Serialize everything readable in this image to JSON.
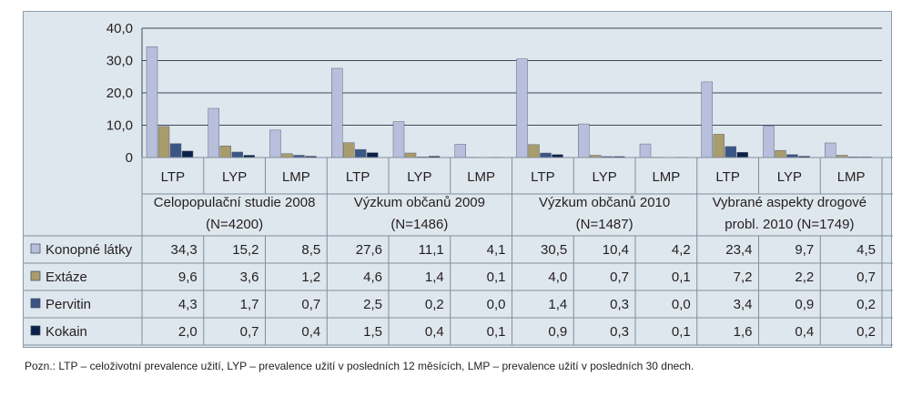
{
  "chart_data": {
    "type": "bar",
    "ylim": [
      0,
      40
    ],
    "yticks": [
      "40,0",
      "30,0",
      "20,0",
      "10,0",
      "0"
    ],
    "groups": [
      {
        "line1": "Celopopulační studie 2008",
        "line2": "(N=4200)"
      },
      {
        "line1": "Výzkum občanů 2009",
        "line2": "(N=1486)"
      },
      {
        "line1": "Výzkum občanů 2010",
        "line2": "(N=1487)"
      },
      {
        "line1": "Vybrané aspekty drogové",
        "line2": "probl. 2010 (N=1749)"
      }
    ],
    "subcategories": [
      "LTP",
      "LYP",
      "LMP",
      "LTP",
      "LYP",
      "LMP",
      "LTP",
      "LYP",
      "LMP",
      "LTP",
      "LYP",
      "LMP"
    ],
    "series": [
      {
        "name": "Konopné látky",
        "color": "#b8bfdc",
        "values": [
          34.3,
          15.2,
          8.5,
          27.6,
          11.1,
          4.1,
          30.5,
          10.4,
          4.2,
          23.4,
          9.7,
          4.5
        ],
        "labels": [
          "34,3",
          "15,2",
          "8,5",
          "27,6",
          "11,1",
          "4,1",
          "30,5",
          "10,4",
          "4,2",
          "23,4",
          "9,7",
          "4,5"
        ]
      },
      {
        "name": "Extáze",
        "color": "#a99c6c",
        "values": [
          9.6,
          3.6,
          1.2,
          4.6,
          1.4,
          0.1,
          4.0,
          0.7,
          0.1,
          7.2,
          2.2,
          0.7
        ],
        "labels": [
          "9,6",
          "3,6",
          "1,2",
          "4,6",
          "1,4",
          "0,1",
          "4,0",
          "0,7",
          "0,1",
          "7,2",
          "2,2",
          "0,7"
        ]
      },
      {
        "name": "Pervitin",
        "color": "#3b5584",
        "values": [
          4.3,
          1.7,
          0.7,
          2.5,
          0.2,
          0.0,
          1.4,
          0.3,
          0.0,
          3.4,
          0.9,
          0.2
        ],
        "labels": [
          "4,3",
          "1,7",
          "0,7",
          "2,5",
          "0,2",
          "0,0",
          "1,4",
          "0,3",
          "0,0",
          "3,4",
          "0,9",
          "0,2"
        ]
      },
      {
        "name": "Kokain",
        "color": "#0c2148",
        "values": [
          2.0,
          0.7,
          0.4,
          1.5,
          0.4,
          0.1,
          0.9,
          0.3,
          0.1,
          1.6,
          0.4,
          0.2
        ],
        "labels": [
          "2,0",
          "0,7",
          "0,4",
          "1,5",
          "0,4",
          "0,1",
          "0,9",
          "0,3",
          "0,1",
          "1,6",
          "0,4",
          "0,2"
        ]
      }
    ]
  },
  "note": "Pozn.: LTP – celoživotní prevalence užití, LYP – prevalence užití v posledních 12 měsících, LMP – prevalence užití v posledních 30 dnech."
}
